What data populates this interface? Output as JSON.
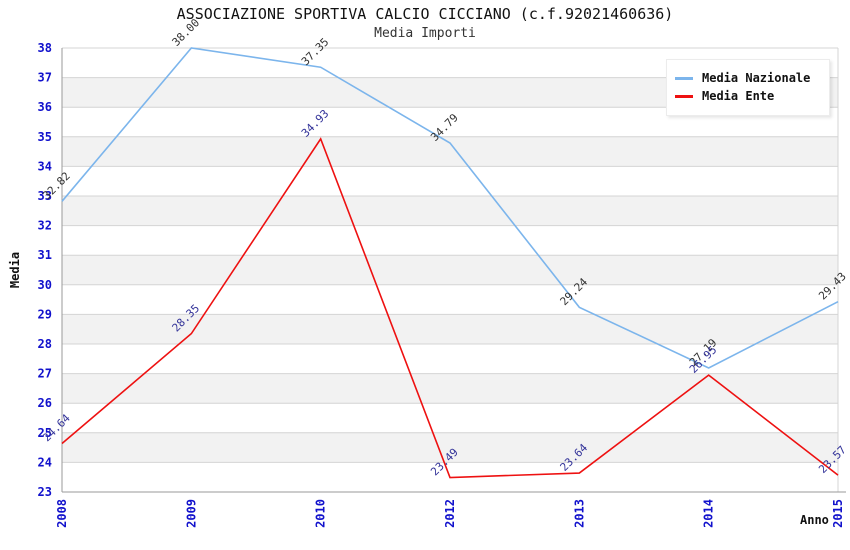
{
  "chart_data": {
    "type": "line",
    "title": "ASSOCIAZIONE SPORTIVA CALCIO CICCIANO (c.f.92021460636)",
    "subtitle": "Media Importi",
    "xlabel": "Anno",
    "ylabel": "Media",
    "categories": [
      "2008",
      "2009",
      "2010",
      "2012",
      "2013",
      "2014",
      "2015"
    ],
    "series": [
      {
        "name": "Media Nazionale",
        "color": "#7cb5ec",
        "label_color": "#333333",
        "values": [
          32.82,
          38.0,
          37.35,
          34.79,
          29.24,
          27.19,
          29.43
        ]
      },
      {
        "name": "Media Ente",
        "color": "#ee1111",
        "label_color": "#333399",
        "values": [
          24.64,
          28.35,
          34.93,
          23.49,
          23.64,
          26.95,
          23.57
        ]
      }
    ],
    "ylim": [
      23,
      38
    ],
    "ytick_step": 1,
    "grid": true,
    "band_fill": "#f2f2f2",
    "grid_color": "#d4d4d4",
    "axis_color": "#9a9a9a",
    "tick_label_color": "#1111cc",
    "legend_position": "top-right",
    "value_label_decimals": 2
  }
}
